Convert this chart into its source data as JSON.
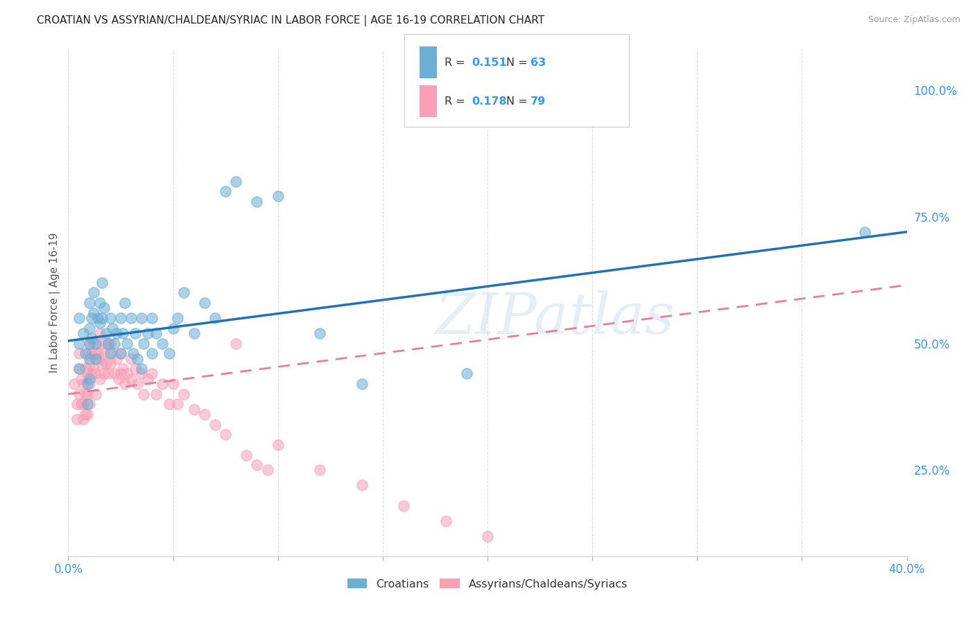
{
  "title": "CROATIAN VS ASSYRIAN/CHALDEAN/SYRIAC IN LABOR FORCE | AGE 16-19 CORRELATION CHART",
  "source": "Source: ZipAtlas.com",
  "ylabel": "In Labor Force | Age 16-19",
  "xlim": [
    0.0,
    0.4
  ],
  "ylim": [
    0.08,
    1.08
  ],
  "xticks": [
    0.0,
    0.05,
    0.1,
    0.15,
    0.2,
    0.25,
    0.3,
    0.35,
    0.4
  ],
  "xticklabels": [
    "0.0%",
    "",
    "",
    "",
    "",
    "",
    "",
    "",
    "40.0%"
  ],
  "yticks_right": [
    0.25,
    0.5,
    0.75,
    1.0
  ],
  "yticklabels_right": [
    "25.0%",
    "50.0%",
    "75.0%",
    "100.0%"
  ],
  "watermark": "ZIPatlas",
  "color_croatian": "#6baed6",
  "color_assyrian": "#fa9fb5",
  "color_line_croatian": "#2171b5",
  "color_line_assyrian": "#e8708a",
  "background": "#ffffff",
  "grid_color": "#dddddd",
  "croatian_x": [
    0.005,
    0.005,
    0.005,
    0.007,
    0.008,
    0.009,
    0.009,
    0.01,
    0.01,
    0.01,
    0.01,
    0.01,
    0.011,
    0.011,
    0.012,
    0.012,
    0.013,
    0.013,
    0.014,
    0.015,
    0.015,
    0.016,
    0.016,
    0.017,
    0.018,
    0.019,
    0.02,
    0.02,
    0.021,
    0.022,
    0.023,
    0.025,
    0.025,
    0.026,
    0.027,
    0.028,
    0.03,
    0.031,
    0.032,
    0.033,
    0.035,
    0.035,
    0.036,
    0.038,
    0.04,
    0.04,
    0.042,
    0.045,
    0.048,
    0.05,
    0.052,
    0.055,
    0.06,
    0.065,
    0.07,
    0.075,
    0.08,
    0.09,
    0.1,
    0.12,
    0.14,
    0.19,
    0.38
  ],
  "croatian_y": [
    0.5,
    0.45,
    0.55,
    0.52,
    0.48,
    0.42,
    0.38,
    0.58,
    0.53,
    0.5,
    0.47,
    0.43,
    0.55,
    0.51,
    0.6,
    0.56,
    0.5,
    0.47,
    0.55,
    0.58,
    0.54,
    0.62,
    0.55,
    0.57,
    0.52,
    0.5,
    0.55,
    0.48,
    0.53,
    0.5,
    0.52,
    0.55,
    0.48,
    0.52,
    0.58,
    0.5,
    0.55,
    0.48,
    0.52,
    0.47,
    0.55,
    0.45,
    0.5,
    0.52,
    0.55,
    0.48,
    0.52,
    0.5,
    0.48,
    0.53,
    0.55,
    0.6,
    0.52,
    0.58,
    0.55,
    0.8,
    0.82,
    0.78,
    0.79,
    0.52,
    0.42,
    0.44,
    0.72
  ],
  "assyrian_x": [
    0.003,
    0.004,
    0.004,
    0.005,
    0.005,
    0.005,
    0.006,
    0.006,
    0.007,
    0.007,
    0.007,
    0.008,
    0.008,
    0.008,
    0.009,
    0.009,
    0.009,
    0.009,
    0.01,
    0.01,
    0.01,
    0.01,
    0.011,
    0.011,
    0.012,
    0.012,
    0.013,
    0.013,
    0.013,
    0.014,
    0.015,
    0.015,
    0.015,
    0.016,
    0.016,
    0.017,
    0.017,
    0.018,
    0.018,
    0.019,
    0.02,
    0.02,
    0.021,
    0.022,
    0.023,
    0.024,
    0.025,
    0.025,
    0.026,
    0.027,
    0.028,
    0.03,
    0.03,
    0.032,
    0.033,
    0.035,
    0.036,
    0.038,
    0.04,
    0.042,
    0.045,
    0.048,
    0.05,
    0.052,
    0.055,
    0.06,
    0.065,
    0.07,
    0.075,
    0.08,
    0.085,
    0.09,
    0.095,
    0.1,
    0.12,
    0.14,
    0.16,
    0.18,
    0.2
  ],
  "assyrian_y": [
    0.42,
    0.38,
    0.35,
    0.48,
    0.45,
    0.4,
    0.43,
    0.38,
    0.42,
    0.38,
    0.35,
    0.45,
    0.4,
    0.36,
    0.48,
    0.44,
    0.4,
    0.36,
    0.5,
    0.46,
    0.42,
    0.38,
    0.48,
    0.44,
    0.5,
    0.45,
    0.48,
    0.44,
    0.4,
    0.48,
    0.52,
    0.47,
    0.43,
    0.5,
    0.46,
    0.48,
    0.44,
    0.5,
    0.46,
    0.44,
    0.5,
    0.46,
    0.48,
    0.44,
    0.47,
    0.43,
    0.48,
    0.44,
    0.45,
    0.42,
    0.44,
    0.47,
    0.43,
    0.45,
    0.42,
    0.44,
    0.4,
    0.43,
    0.44,
    0.4,
    0.42,
    0.38,
    0.42,
    0.38,
    0.4,
    0.37,
    0.36,
    0.34,
    0.32,
    0.5,
    0.28,
    0.26,
    0.25,
    0.3,
    0.25,
    0.22,
    0.18,
    0.15,
    0.12
  ]
}
